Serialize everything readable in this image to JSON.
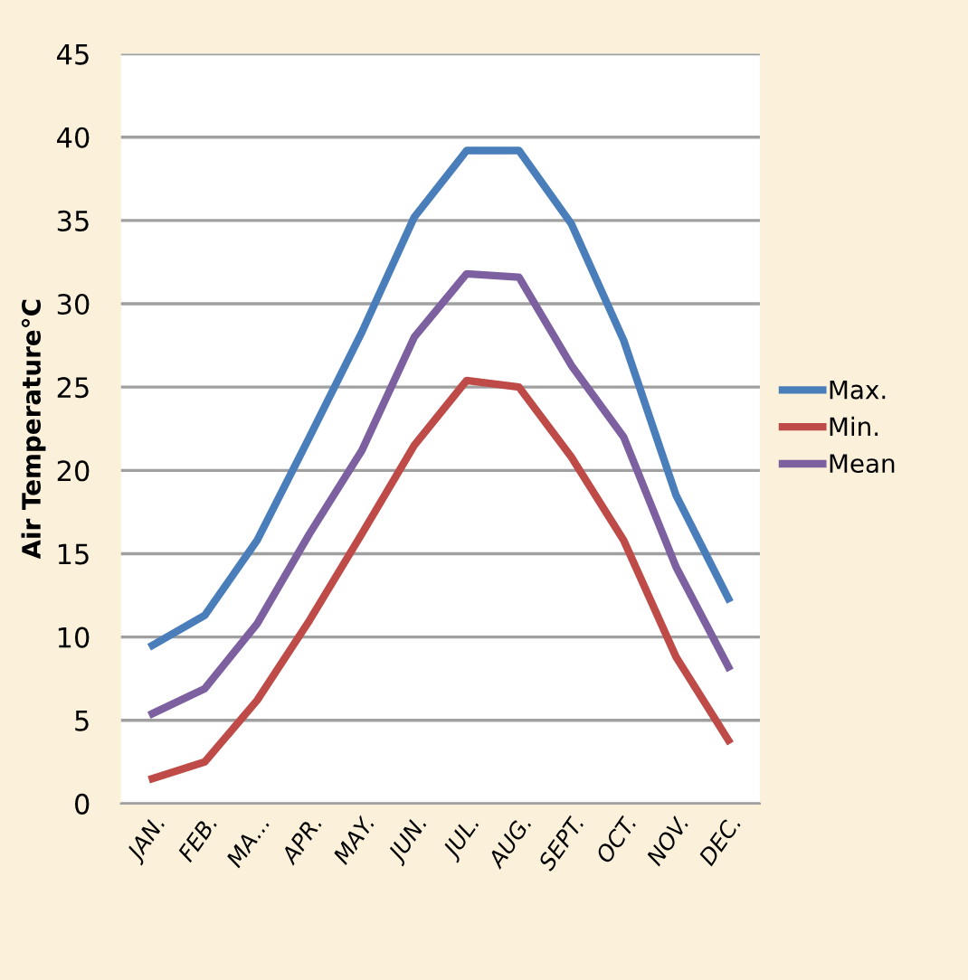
{
  "chart_data": {
    "type": "line",
    "ylabel": "Air Temperature°C",
    "categories": [
      "JAN.",
      "FEB.",
      "MA...",
      "APR.",
      "MAY.",
      "JUN.",
      "JUL.",
      "AUG.",
      "SEPT.",
      "OCT.",
      "NOV.",
      "DEC."
    ],
    "series": [
      {
        "name": "Max.",
        "color": "#4a7ebb",
        "values": [
          9.5,
          11.3,
          15.8,
          22,
          28.3,
          35.2,
          39.2,
          39.2,
          34.8,
          27.8,
          18.5,
          12.3
        ]
      },
      {
        "name": "Min.",
        "color": "#be4b48",
        "values": [
          1.5,
          2.5,
          6.2,
          11,
          16.2,
          21.5,
          25.4,
          25,
          20.8,
          15.8,
          8.8,
          3.8
        ]
      },
      {
        "name": "Mean",
        "color": "#7d60a0",
        "values": [
          5.4,
          6.9,
          10.8,
          16.2,
          21.2,
          28,
          31.8,
          31.6,
          26.3,
          22,
          14.2,
          8.2
        ]
      }
    ],
    "ylim": [
      0,
      45
    ],
    "yticks": [
      0,
      5,
      10,
      15,
      20,
      25,
      30,
      35,
      40,
      45
    ],
    "grid": "y",
    "legend": "right",
    "marker": "none",
    "line_style": "solid"
  }
}
